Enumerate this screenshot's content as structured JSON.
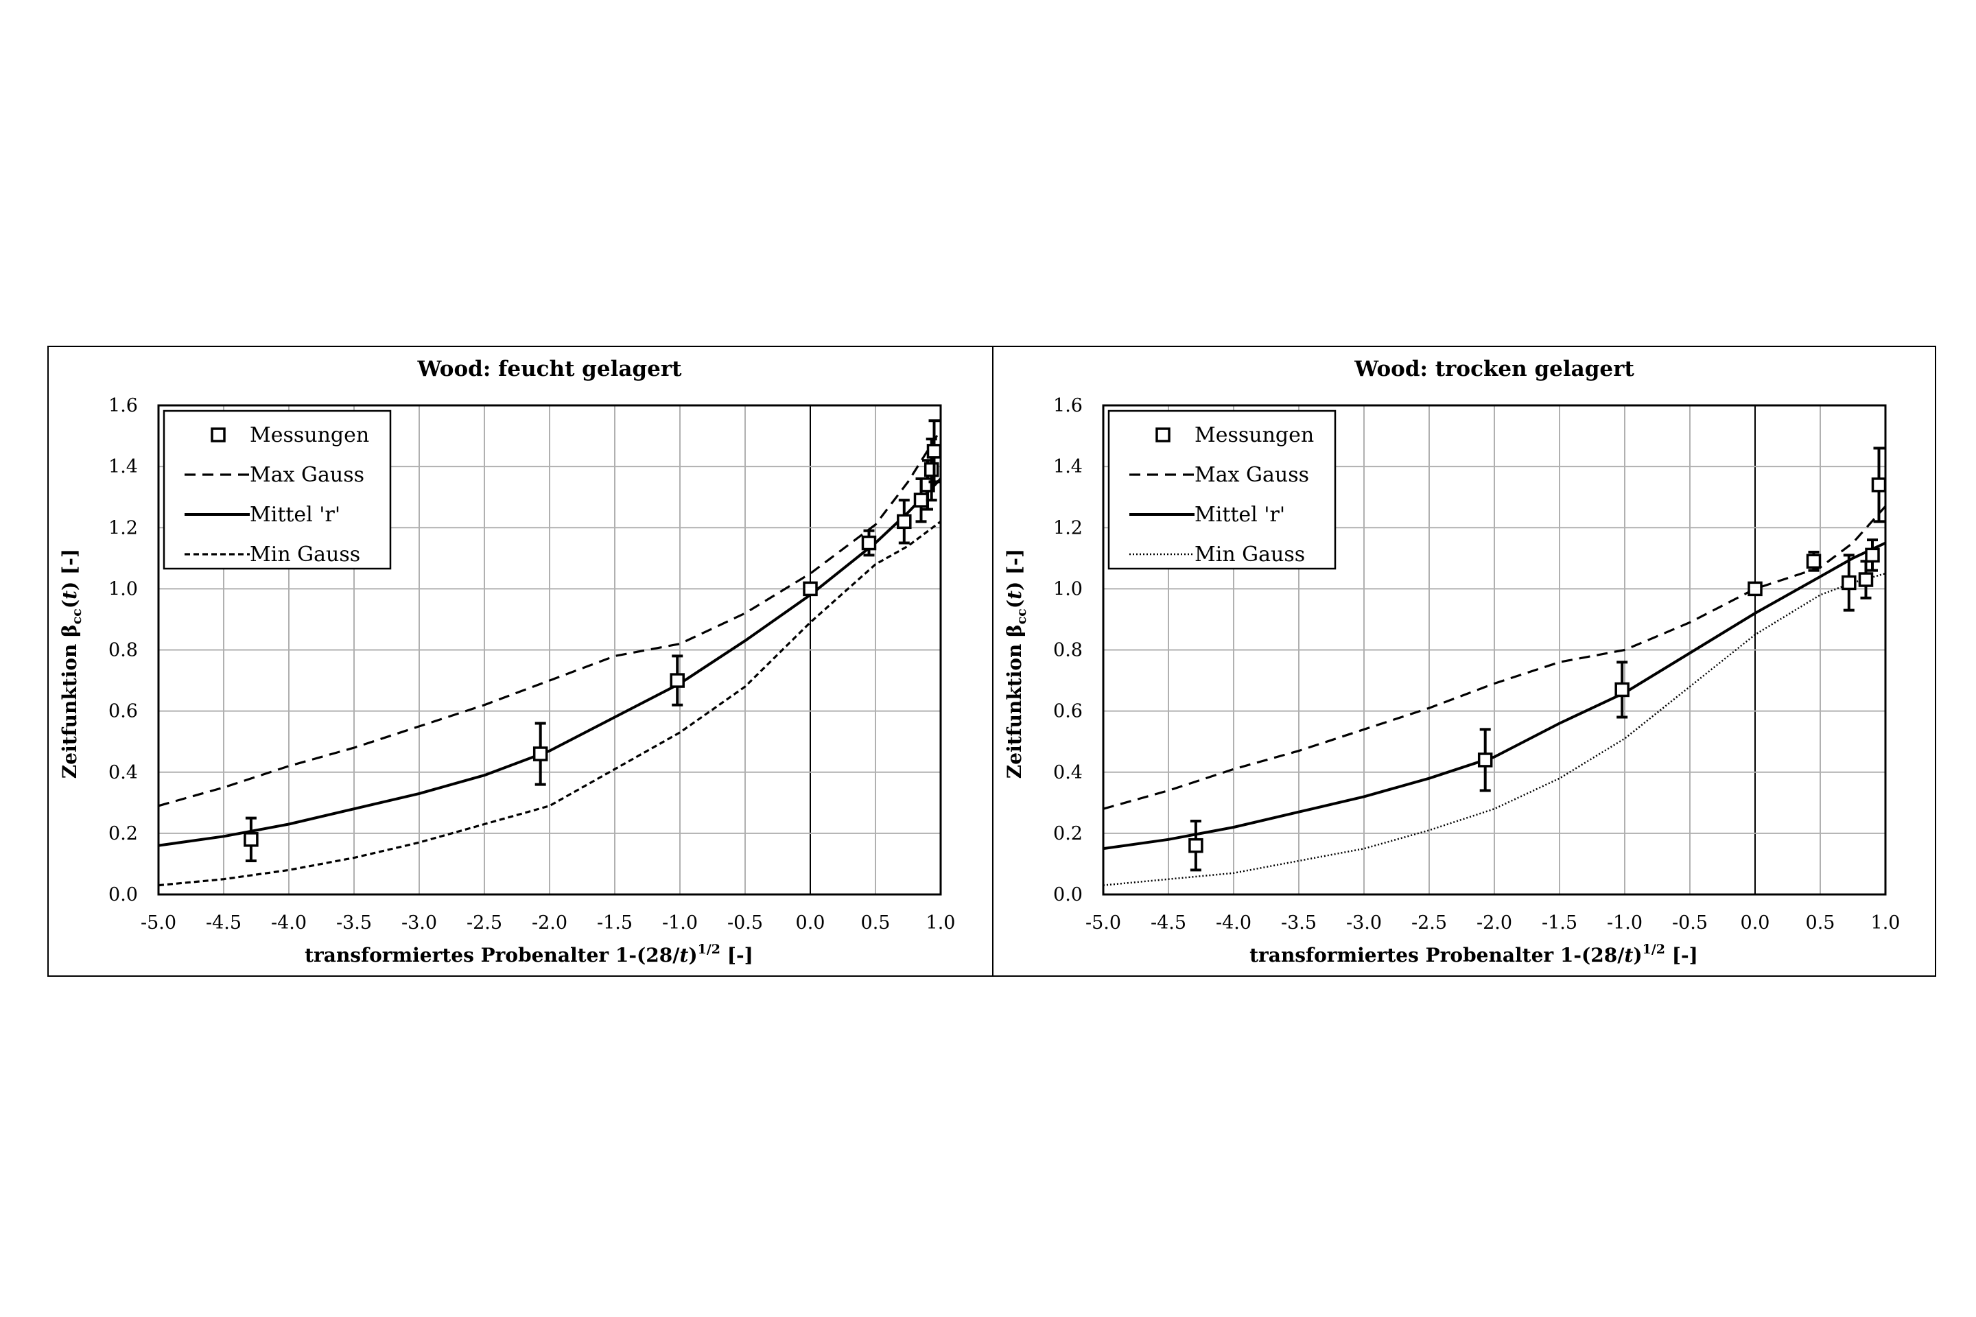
{
  "chart_data": [
    {
      "type": "scatter",
      "title": "Wood: feucht gelagert",
      "xlabel_main": "transformiertes Probenalter 1-(28/",
      "xlabel_var": "t",
      "xlabel_close": ")",
      "xlabel_sup": "1/2",
      "xlabel_tail": " [-]",
      "ylabel_main": "Zeitfunktion β",
      "ylabel_sub": "cc",
      "ylabel_open": "(",
      "ylabel_var": "t",
      "ylabel_tail": ") [-]",
      "xlim": [
        -5.0,
        1.0
      ],
      "ylim": [
        0.0,
        1.6
      ],
      "x_ticks": [
        "-5.0",
        "-4.5",
        "-4.0",
        "-3.5",
        "-3.0",
        "-2.5",
        "-2.0",
        "-1.5",
        "-1.0",
        "-0.5",
        "0.0",
        "0.5",
        "1.0"
      ],
      "y_ticks": [
        "0.0",
        "0.2",
        "0.4",
        "0.6",
        "0.8",
        "1.0",
        "1.2",
        "1.4",
        "1.6"
      ],
      "grid": true,
      "legend_position": "top-left",
      "series": [
        {
          "name": "Messungen",
          "style": "marker",
          "points": [
            {
              "x": -4.29,
              "y": 0.18,
              "err": 0.07
            },
            {
              "x": -2.07,
              "y": 0.46,
              "err": 0.1
            },
            {
              "x": -1.02,
              "y": 0.7,
              "err": 0.08
            },
            {
              "x": 0.0,
              "y": 1.0,
              "err": 0
            },
            {
              "x": 0.45,
              "y": 1.15,
              "err": 0.04
            },
            {
              "x": 0.72,
              "y": 1.22,
              "err": 0.07
            },
            {
              "x": 0.85,
              "y": 1.29,
              "err": 0.07
            },
            {
              "x": 0.9,
              "y": 1.34,
              "err": 0.08
            },
            {
              "x": 0.93,
              "y": 1.39,
              "err": 0.1
            },
            {
              "x": 0.95,
              "y": 1.45,
              "err": 0.1
            }
          ]
        },
        {
          "name": "Max Gauss",
          "style": "dashed",
          "x": [
            -5.0,
            -4.5,
            -4.0,
            -3.5,
            -3.0,
            -2.5,
            -2.0,
            -1.5,
            -1.0,
            -0.5,
            0.0,
            0.5,
            0.75,
            1.0
          ],
          "y": [
            0.29,
            0.35,
            0.42,
            0.48,
            0.55,
            0.62,
            0.7,
            0.78,
            0.82,
            0.92,
            1.05,
            1.21,
            1.35,
            1.52
          ]
        },
        {
          "name": "Mittel 'r'",
          "style": "solid",
          "x": [
            -5.0,
            -4.5,
            -4.0,
            -3.5,
            -3.0,
            -2.5,
            -2.0,
            -1.5,
            -1.0,
            -0.5,
            0.0,
            0.5,
            0.75,
            1.0
          ],
          "y": [
            0.16,
            0.19,
            0.23,
            0.28,
            0.33,
            0.39,
            0.47,
            0.58,
            0.69,
            0.83,
            0.98,
            1.15,
            1.25,
            1.36
          ]
        },
        {
          "name": "Min Gauss",
          "style": "short-dashed",
          "x": [
            -5.0,
            -4.5,
            -4.0,
            -3.5,
            -3.0,
            -2.5,
            -2.0,
            -1.5,
            -1.0,
            -0.5,
            0.0,
            0.5,
            0.75,
            1.0
          ],
          "y": [
            0.03,
            0.05,
            0.08,
            0.12,
            0.17,
            0.23,
            0.29,
            0.41,
            0.53,
            0.68,
            0.89,
            1.08,
            1.14,
            1.22
          ]
        }
      ]
    },
    {
      "type": "scatter",
      "title": "Wood: trocken gelagert",
      "xlabel_main": "transformiertes Probenalter 1-(28/",
      "xlabel_var": "t",
      "xlabel_close": ")",
      "xlabel_sup": "1/2",
      "xlabel_tail": " [-]",
      "ylabel_main": "Zeitfunktion β",
      "ylabel_sub": "cc",
      "ylabel_open": "(",
      "ylabel_var": "t",
      "ylabel_tail": ") [-]",
      "xlim": [
        -5.0,
        1.0
      ],
      "ylim": [
        0.0,
        1.6
      ],
      "x_ticks": [
        "-5.0",
        "-4.5",
        "-4.0",
        "-3.5",
        "-3.0",
        "-2.5",
        "-2.0",
        "-1.5",
        "-1.0",
        "-0.5",
        "0.0",
        "0.5",
        "1.0"
      ],
      "y_ticks": [
        "0.0",
        "0.2",
        "0.4",
        "0.6",
        "0.8",
        "1.0",
        "1.2",
        "1.4",
        "1.6"
      ],
      "grid": true,
      "legend_position": "top-left",
      "series": [
        {
          "name": "Messungen",
          "style": "marker",
          "points": [
            {
              "x": -4.29,
              "y": 0.16,
              "err": 0.08
            },
            {
              "x": -2.07,
              "y": 0.44,
              "err": 0.1
            },
            {
              "x": -1.02,
              "y": 0.67,
              "err": 0.09
            },
            {
              "x": 0.0,
              "y": 1.0,
              "err": 0
            },
            {
              "x": 0.45,
              "y": 1.09,
              "err": 0.03
            },
            {
              "x": 0.72,
              "y": 1.02,
              "err": 0.09
            },
            {
              "x": 0.85,
              "y": 1.03,
              "err": 0.06
            },
            {
              "x": 0.9,
              "y": 1.11,
              "err": 0.05
            },
            {
              "x": 0.95,
              "y": 1.34,
              "err": 0.12
            }
          ]
        },
        {
          "name": "Max Gauss",
          "style": "dashed",
          "x": [
            -5.0,
            -4.5,
            -4.0,
            -3.5,
            -3.0,
            -2.5,
            -2.0,
            -1.5,
            -1.0,
            -0.5,
            0.0,
            0.5,
            0.75,
            1.0
          ],
          "y": [
            0.28,
            0.34,
            0.41,
            0.47,
            0.54,
            0.61,
            0.69,
            0.76,
            0.8,
            0.89,
            1.0,
            1.07,
            1.15,
            1.27
          ]
        },
        {
          "name": "Mittel 'r'",
          "style": "solid",
          "x": [
            -5.0,
            -4.5,
            -4.0,
            -3.5,
            -3.0,
            -2.5,
            -2.0,
            -1.5,
            -1.0,
            -0.5,
            0.0,
            0.5,
            0.75,
            1.0
          ],
          "y": [
            0.15,
            0.18,
            0.22,
            0.27,
            0.32,
            0.38,
            0.45,
            0.56,
            0.66,
            0.79,
            0.92,
            1.04,
            1.1,
            1.15
          ]
        },
        {
          "name": "Min Gauss",
          "style": "dotted",
          "x": [
            -5.0,
            -4.5,
            -4.0,
            -3.5,
            -3.0,
            -2.5,
            -2.0,
            -1.5,
            -1.0,
            -0.5,
            0.0,
            0.5,
            0.75,
            1.0
          ],
          "y": [
            0.03,
            0.05,
            0.07,
            0.11,
            0.15,
            0.21,
            0.28,
            0.38,
            0.51,
            0.68,
            0.85,
            0.98,
            1.02,
            1.05
          ]
        }
      ]
    }
  ]
}
